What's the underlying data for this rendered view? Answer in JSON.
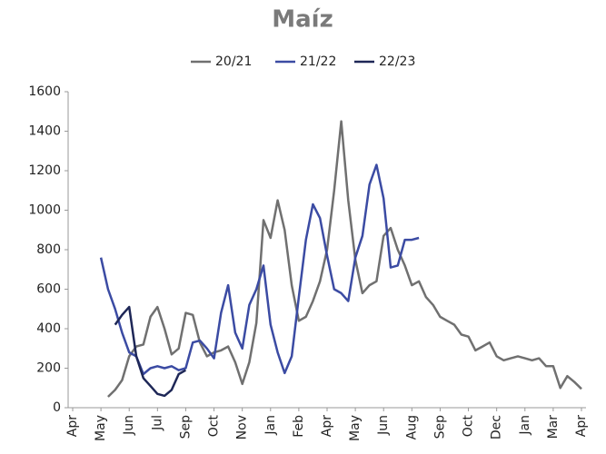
{
  "chart_data": {
    "type": "line",
    "title": "Maíz",
    "categories": [
      "Apr",
      null,
      null,
      null,
      "May",
      null,
      null,
      null,
      "Jun",
      null,
      null,
      null,
      "Jul",
      null,
      null,
      null,
      "Sep",
      null,
      null,
      null,
      "Oct",
      null,
      null,
      null,
      "Nov",
      null,
      null,
      null,
      "Jan",
      null,
      null,
      null,
      "Feb",
      null,
      null,
      null,
      "Apr",
      null,
      null,
      null,
      "May",
      null,
      null,
      null,
      "Jun",
      null,
      null,
      null,
      "Aug",
      null,
      null,
      null,
      "Sep",
      null,
      null,
      null,
      "Oct",
      null,
      null,
      null,
      "Dec",
      null,
      null,
      null,
      "Jan",
      null,
      null,
      null,
      "Mar",
      null,
      null,
      null,
      "Apr"
    ],
    "series": [
      {
        "name": "20/21",
        "color": "#707070",
        "values": [
          null,
          null,
          null,
          null,
          null,
          55,
          90,
          140,
          260,
          310,
          320,
          460,
          510,
          400,
          270,
          300,
          480,
          470,
          330,
          260,
          280,
          290,
          310,
          230,
          120,
          230,
          430,
          950,
          860,
          1050,
          900,
          620,
          440,
          460,
          540,
          640,
          800,
          1100,
          1450,
          1050,
          750,
          580,
          620,
          640,
          870,
          910,
          800,
          720,
          620,
          640,
          560,
          520,
          460,
          440,
          420,
          370,
          360,
          290,
          310,
          330,
          260,
          240,
          250,
          260,
          250,
          240,
          250,
          210,
          210,
          100,
          160,
          130,
          95
        ]
      },
      {
        "name": "21/22",
        "color": "#3b4ba3",
        "values": [
          null,
          null,
          null,
          null,
          760,
          600,
          500,
          380,
          280,
          260,
          170,
          200,
          210,
          200,
          210,
          190,
          200,
          330,
          340,
          300,
          250,
          480,
          620,
          380,
          300,
          520,
          600,
          720,
          420,
          280,
          175,
          260,
          560,
          850,
          1030,
          960,
          770,
          600,
          580,
          540,
          760,
          870,
          1130,
          1230,
          1060,
          710,
          720,
          850,
          850,
          860,
          null,
          null,
          null,
          null,
          null,
          null,
          null,
          null,
          null,
          null,
          null,
          null,
          null,
          null,
          null,
          null,
          null,
          null,
          null,
          null,
          null,
          null,
          null
        ]
      },
      {
        "name": "22/23",
        "color": "#1e2757",
        "values": [
          null,
          null,
          null,
          null,
          null,
          null,
          420,
          470,
          510,
          260,
          150,
          110,
          70,
          60,
          90,
          170,
          190,
          null,
          null,
          null,
          null,
          null,
          null,
          null,
          null,
          null,
          null,
          null,
          null,
          null,
          null,
          null,
          null,
          null,
          null,
          null,
          null,
          null,
          null,
          null,
          null,
          null,
          null,
          null,
          null,
          null,
          null,
          null,
          null,
          null,
          null,
          null,
          null,
          null,
          null,
          null,
          null,
          null,
          null,
          null,
          null,
          null,
          null,
          null,
          null,
          null,
          null,
          null,
          null,
          null,
          null,
          null,
          null
        ]
      }
    ],
    "ylim": [
      0,
      1600
    ],
    "yticks": [
      0,
      200,
      400,
      600,
      800,
      1000,
      1200,
      1400,
      1600
    ]
  }
}
